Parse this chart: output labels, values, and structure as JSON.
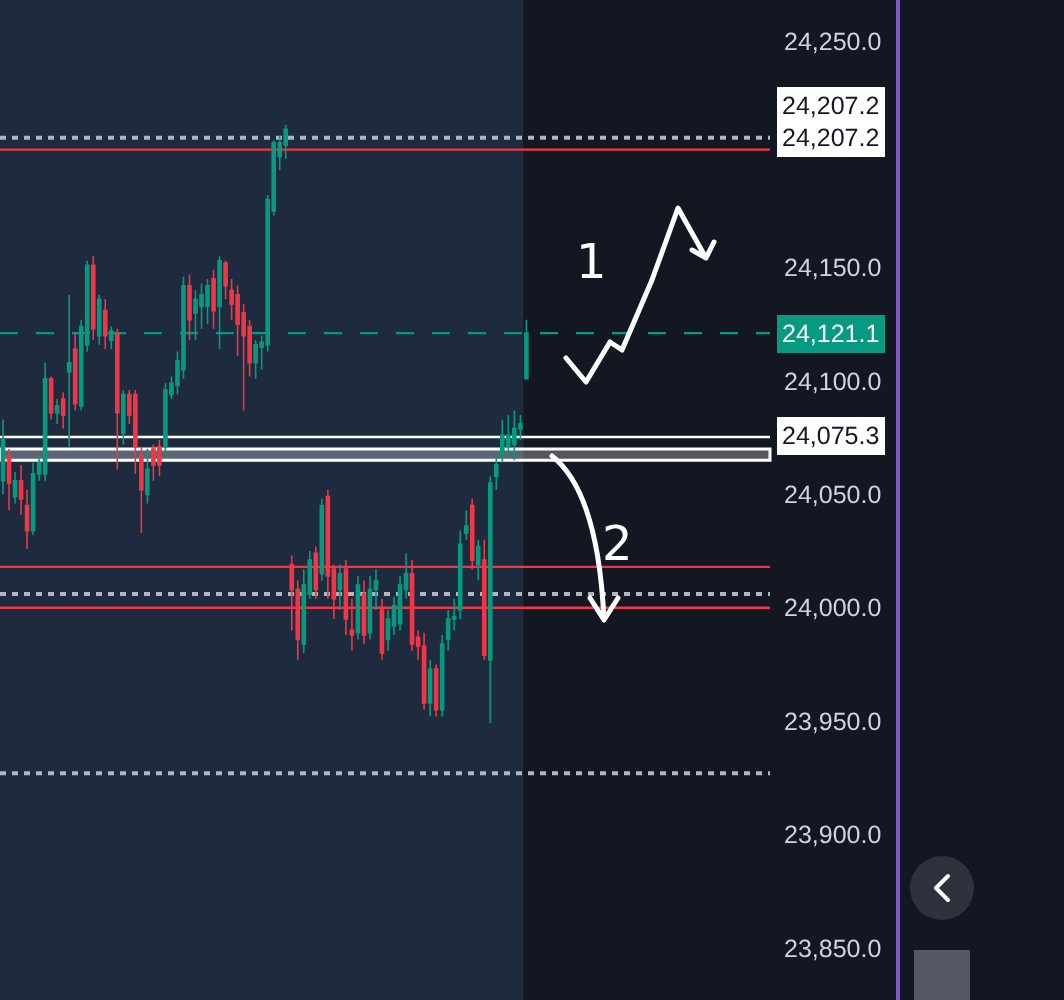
{
  "chart_data": {
    "type": "candlestick",
    "categories": [
      null,
      null,
      null,
      null,
      null,
      null,
      null,
      null,
      null,
      null,
      null,
      null,
      null,
      null,
      null,
      null,
      null,
      null,
      null,
      null,
      null,
      null,
      null,
      null,
      null,
      null,
      null,
      null,
      null,
      null,
      null,
      null,
      null,
      null,
      null,
      null,
      null,
      null,
      null,
      null,
      null,
      null,
      null,
      null,
      null,
      null,
      null,
      null,
      null,
      null,
      null,
      null,
      null,
      null,
      null,
      null,
      null,
      null,
      null,
      null,
      null,
      null,
      null,
      null,
      null,
      null,
      null,
      null,
      null,
      null,
      null,
      null,
      null,
      null,
      null,
      null,
      null,
      null,
      null,
      null,
      null,
      null,
      null,
      null,
      null,
      null,
      null,
      null,
      null,
      null,
      null,
      null,
      null,
      null,
      null,
      null,
      null,
      null,
      null,
      null,
      null,
      null,
      null,
      null,
      null,
      null,
      null,
      null,
      null,
      null,
      null,
      null,
      null,
      null,
      null,
      null,
      null,
      null,
      null,
      null,
      null,
      null,
      null,
      null,
      null,
      null,
      null,
      null
    ],
    "ohlc": [
      [
        24056,
        24083,
        24050,
        24074
      ],
      [
        24067,
        24070,
        24043,
        24055
      ],
      [
        24049,
        24060,
        24046,
        24056
      ],
      [
        24056,
        24063,
        24041,
        24048
      ],
      [
        24045,
        24052,
        24026,
        24034
      ],
      [
        24034,
        24064,
        24032,
        24059
      ],
      [
        24059,
        24067,
        24056,
        24064
      ],
      [
        24059,
        24108,
        24056,
        24101
      ],
      [
        24101,
        24102,
        24083,
        24086
      ],
      [
        24086,
        24092,
        24081,
        24089
      ],
      [
        24092,
        24095,
        24079,
        24085
      ],
      [
        24104,
        24138,
        24071,
        24108
      ],
      [
        24114,
        24121,
        24087,
        24090
      ],
      [
        24089,
        24127,
        24087,
        24124
      ],
      [
        24116,
        24153,
        24113,
        24151
      ],
      [
        24151,
        24155,
        24118,
        24123
      ],
      [
        24120,
        24138,
        24116,
        24136
      ],
      [
        24131,
        24136,
        24114,
        24120
      ],
      [
        24118,
        24124,
        24114,
        24122
      ],
      [
        24121,
        24123,
        24061,
        24086
      ],
      [
        24077,
        24096,
        24072,
        24094
      ],
      [
        24094,
        24096,
        24081,
        24085
      ],
      [
        24094,
        24096,
        24059,
        24071
      ],
      [
        24067,
        24071,
        24033,
        24052
      ],
      [
        24050,
        24070,
        24046,
        24061
      ],
      [
        24070,
        24072,
        24056,
        24063
      ],
      [
        24071,
        24074,
        24058,
        24063
      ],
      [
        24071,
        24099,
        24067,
        24096
      ],
      [
        24094,
        24102,
        24092,
        24099
      ],
      [
        24098,
        24113,
        24094,
        24109
      ],
      [
        24105,
        24146,
        24101,
        24142
      ],
      [
        24142,
        24147,
        24118,
        24127
      ],
      [
        24130,
        24140,
        24118,
        24136
      ],
      [
        24133,
        24143,
        24123,
        24138
      ],
      [
        24133,
        24145,
        24125,
        24142
      ],
      [
        24145,
        24149,
        24123,
        24131
      ],
      [
        24133,
        24155,
        24114,
        24153
      ],
      [
        24152,
        24153,
        24136,
        24142
      ],
      [
        24140,
        24145,
        24127,
        24134
      ],
      [
        24138,
        24142,
        24111,
        24125
      ],
      [
        24130,
        24134,
        24087,
        24120
      ],
      [
        24124,
        24127,
        24102,
        24108
      ],
      [
        24108,
        24118,
        24101,
        24116
      ],
      [
        24115,
        24120,
        24105,
        24117
      ],
      [
        24116,
        24182,
        24113,
        24180
      ],
      [
        24175,
        24206,
        24173,
        24205
      ],
      [
        24199,
        24208,
        24193,
        24205
      ],
      [
        24204,
        24213,
        24198,
        24211
      ],
      [
        24019,
        24023,
        23990,
        24008
      ],
      [
        24008,
        24012,
        23977,
        23986
      ],
      [
        23984,
        24017,
        23980,
        24010
      ],
      [
        24006,
        24025,
        24004,
        24021
      ],
      [
        24024,
        24027,
        24004,
        24008
      ],
      [
        24015,
        24048,
        24012,
        24045
      ],
      [
        24049,
        24052,
        24004,
        24014
      ],
      [
        24017,
        24019,
        23995,
        24004
      ],
      [
        24008,
        24019,
        23999,
        24015
      ],
      [
        24017,
        24021,
        23988,
        23995
      ],
      [
        23990,
        24004,
        23981,
        23988
      ],
      [
        23989,
        24014,
        23986,
        24010
      ],
      [
        24006,
        24012,
        23984,
        23988
      ],
      [
        23989,
        24014,
        23986,
        24008
      ],
      [
        24008,
        24017,
        23999,
        24012
      ],
      [
        23999,
        24004,
        23977,
        23980
      ],
      [
        23986,
        23999,
        23981,
        23995
      ],
      [
        23992,
        24005,
        23988,
        24001
      ],
      [
        23993,
        24014,
        23990,
        24010
      ],
      [
        24008,
        24024,
        24004,
        24015
      ],
      [
        24015,
        24021,
        23981,
        23984
      ],
      [
        23987,
        23990,
        23977,
        23983
      ],
      [
        23983,
        23989,
        23955,
        23958
      ],
      [
        23958,
        23977,
        23952,
        23973
      ],
      [
        23973,
        23975,
        23952,
        23955
      ],
      [
        23955,
        23988,
        23952,
        23984
      ],
      [
        23986,
        23999,
        23981,
        23995
      ],
      [
        23995,
        24004,
        23990,
        23996
      ],
      [
        23999,
        24034,
        23995,
        24028
      ],
      [
        24033,
        24043,
        24030,
        24036
      ],
      [
        24045,
        24048,
        24017,
        24021
      ],
      [
        24019,
        24030,
        24012,
        24027
      ],
      [
        24021,
        24030,
        23977,
        23979
      ],
      [
        23977,
        24058,
        23949,
        24055
      ],
      [
        24058,
        24067,
        24052,
        24063
      ],
      [
        24068,
        24083,
        24064,
        24076
      ],
      [
        24071,
        24085,
        24067,
        24076
      ],
      [
        24072,
        24087,
        24065,
        24079
      ],
      [
        24079,
        24085,
        24074,
        24081
      ],
      [
        24101,
        24127,
        24101,
        24121.1
      ],
      null,
      null,
      null,
      null,
      null,
      null,
      null,
      null,
      null,
      null,
      null,
      null,
      null,
      null,
      null,
      null,
      null,
      null,
      null,
      null,
      null,
      null,
      null,
      null,
      null,
      null,
      null,
      null,
      null,
      null,
      null,
      null,
      null,
      null,
      null,
      null,
      null,
      null,
      null,
      null
    ],
    "colors": [
      "#089981",
      "#f23645",
      "#089981",
      "#f23645",
      "#f23645",
      "#089981",
      "#089981",
      "#089981",
      "#f23645",
      "#089981",
      "#f23645",
      "#089981",
      "#f23645",
      "#089981",
      "#089981",
      "#f23645",
      "#089981",
      "#f23645",
      "#089981",
      "#f23645",
      "#089981",
      "#f23645",
      "#f23645",
      "#f23645",
      "#089981",
      "#f23645",
      "#f23645",
      "#089981",
      "#089981",
      "#089981",
      "#089981",
      "#f23645",
      "#089981",
      "#089981",
      "#089981",
      "#f23645",
      "#089981",
      "#f23645",
      "#f23645",
      "#f23645",
      "#f23645",
      "#f23645",
      "#089981",
      "#089981",
      "#089981",
      "#089981",
      "#089981",
      "#089981",
      "#f23645",
      "#f23645",
      "#089981",
      "#089981",
      "#f23645",
      "#089981",
      "#f23645",
      "#f23645",
      "#089981",
      "#f23645",
      "#f23645",
      "#089981",
      "#f23645",
      "#089981",
      "#089981",
      "#f23645",
      "#089981",
      "#089981",
      "#089981",
      "#089981",
      "#f23645",
      "#f23645",
      "#f23645",
      "#089981",
      "#f23645",
      "#089981",
      "#089981",
      "#089981",
      "#089981",
      "#089981",
      "#f23645",
      "#089981",
      "#f23645",
      "#089981",
      "#089981",
      "#089981",
      "#089981",
      "#089981",
      "#089981",
      "#089981",
      null,
      null,
      null,
      null,
      null,
      null,
      null,
      null,
      null,
      null,
      null,
      null,
      null,
      null,
      null,
      null,
      null,
      null,
      null,
      null,
      null,
      null,
      null,
      null,
      null,
      null,
      null,
      null,
      null,
      null,
      null,
      null,
      null,
      null,
      null,
      null,
      null,
      null,
      null,
      null
    ],
    "ylim": [
      23827,
      24268
    ],
    "yticks": [
      {
        "value": 23850,
        "label": "23,850.0"
      },
      {
        "value": 23900,
        "label": "23,900.0"
      },
      {
        "value": 23950,
        "label": "23,950.0"
      },
      {
        "value": 24000,
        "label": "24,000.0"
      },
      {
        "value": 24050,
        "label": "24,050.0"
      },
      {
        "value": 24100,
        "label": "24,100.0"
      },
      {
        "value": 24150,
        "label": "24,150.0"
      },
      {
        "value": 24250,
        "label": "24,250.0"
      }
    ],
    "grid": false,
    "tick_labels": "y",
    "ref_lines": [
      {
        "axis": "y",
        "value": 24207.2,
        "label": "24,207.2",
        "color": "#b2b5be",
        "line_style": "dotted"
      },
      {
        "axis": "y",
        "value": 24202,
        "color": "#f23645",
        "line_style": "solid"
      },
      {
        "axis": "y",
        "value": 24121.1,
        "label": "24,121.1",
        "color": "#089981",
        "line_style": "dashed"
      },
      {
        "axis": "y",
        "value": 24075.3,
        "label": "24,075.3",
        "color": "#ffffff",
        "line_style": "solid"
      },
      {
        "axis": "y",
        "value": 24018,
        "color": "#f23645",
        "line_style": "solid"
      },
      {
        "axis": "y",
        "value": 24006,
        "color": "#b2b5be",
        "line_style": "dotted"
      },
      {
        "axis": "y",
        "value": 24000,
        "color": "#f23645",
        "line_style": "solid"
      },
      {
        "axis": "y",
        "value": 23927,
        "color": "#b2b5be",
        "line_style": "dotted"
      }
    ],
    "bands": [
      {
        "axis": "y",
        "from": 24065,
        "to": 24070,
        "color": "#ffffff"
      }
    ],
    "annotations": [
      "24,207.2",
      "1",
      "2"
    ]
  }
}
